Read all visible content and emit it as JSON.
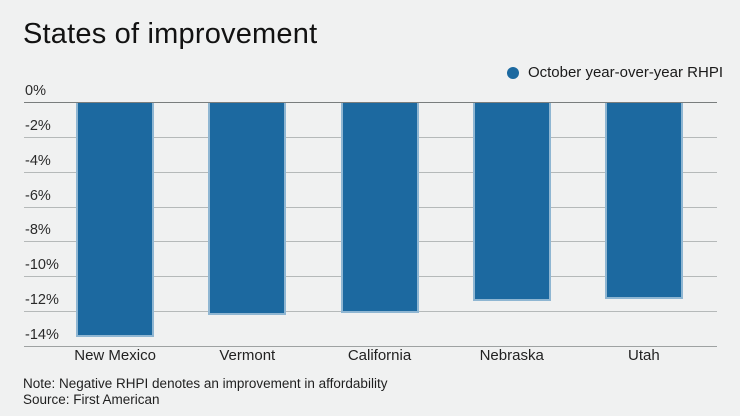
{
  "title": "States of improvement",
  "legend": {
    "label": "October year-over-year RHPI",
    "dot_color": "#1c69a0"
  },
  "note": "Note: Negative RHPI denotes an improvement in affordability",
  "source": "Source: First American",
  "colors": {
    "background": "#f0f1f1",
    "bar": "#1c69a0",
    "bar_stroke": "#8fb6d2",
    "gridline": "#b5b9b9",
    "zero_line": "#797d7d",
    "bottom_line": "#9ea2a2",
    "text": "#1a1a1a"
  },
  "chart_data": {
    "type": "bar",
    "title": "States of improvement",
    "series_name": "October year-over-year RHPI",
    "categories": [
      "New Mexico",
      "Vermont",
      "California",
      "Nebraska",
      "Utah"
    ],
    "values": [
      -13.5,
      -12.2,
      -12.1,
      -11.4,
      -11.3
    ],
    "xlabel": "",
    "ylabel": "",
    "ylim": [
      -14,
      0
    ],
    "yticks": [
      0,
      -2,
      -4,
      -6,
      -8,
      -10,
      -12,
      -14
    ],
    "ytick_suffix": "%",
    "grid": true,
    "legend_position": "top-right",
    "bar_color": "#1c69a0"
  }
}
